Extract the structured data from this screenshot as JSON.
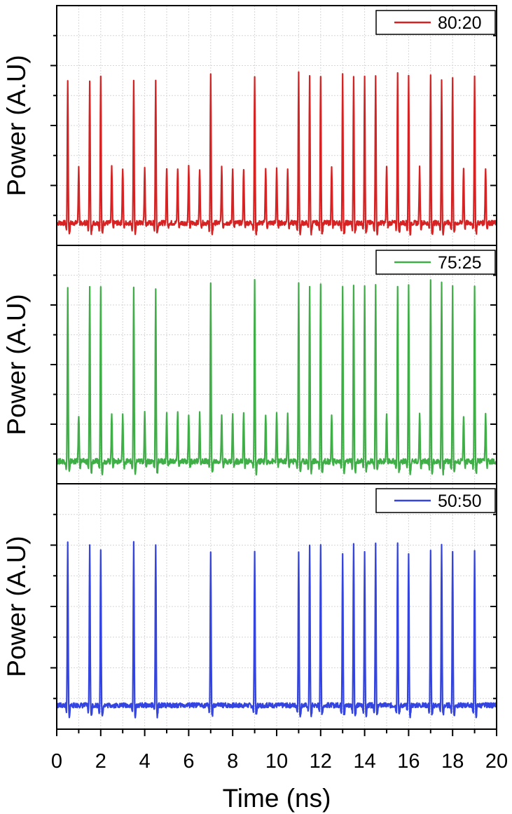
{
  "chart_data": [
    {
      "type": "line",
      "series": [
        {
          "name": "80:20",
          "color": "#d62222"
        }
      ],
      "legend": "top-right",
      "ylabel": "Power (A.U)",
      "baseline": 0.0,
      "pulses": {
        "x": [
          0.5,
          1.5,
          2.0,
          3.5,
          4.5,
          7.0,
          9.0,
          11.0,
          11.5,
          12.0,
          13.0,
          13.5,
          14.0,
          14.5,
          15.5,
          16.0,
          17.0,
          17.5,
          18.0,
          19.0
        ],
        "y": [
          0.86,
          0.86,
          0.88,
          0.86,
          0.86,
          0.89,
          0.88,
          0.89,
          0.89,
          0.89,
          0.88,
          0.88,
          0.89,
          0.89,
          0.89,
          0.88,
          0.89,
          0.85,
          0.88,
          0.89
        ]
      },
      "small_pulse_height": 0.33,
      "grid": true
    },
    {
      "type": "line",
      "series": [
        {
          "name": "75:25",
          "color": "#3fae47"
        }
      ],
      "legend": "top-right",
      "ylabel": "Power (A.U)",
      "baseline": 0.0,
      "pulses": {
        "x": [
          0.5,
          1.5,
          2.0,
          3.5,
          4.5,
          7.0,
          9.0,
          11.0,
          11.5,
          12.0,
          13.0,
          13.5,
          14.0,
          14.5,
          15.5,
          16.0,
          17.0,
          17.5,
          18.0,
          19.0
        ],
        "y": [
          0.96,
          0.96,
          0.96,
          0.96,
          0.96,
          1.0,
          0.99,
          0.98,
          0.96,
          0.99,
          0.98,
          0.96,
          0.96,
          0.98,
          0.96,
          0.98,
          1.0,
          0.99,
          0.96,
          0.97
        ]
      },
      "small_pulse_height": 0.26,
      "grid": true
    },
    {
      "type": "line",
      "series": [
        {
          "name": "50:50",
          "color": "#3344e0"
        }
      ],
      "legend": "top-right",
      "ylabel": "Power (A.U)",
      "xlabel": "Time (ns)",
      "xlim": [
        0,
        20
      ],
      "xticks": [
        "0",
        "2",
        "4",
        "6",
        "8",
        "10",
        "12",
        "14",
        "16",
        "18",
        "20"
      ],
      "baseline": 0.0,
      "pulses": {
        "x": [
          0.5,
          1.5,
          2.0,
          3.5,
          4.5,
          7.0,
          9.0,
          11.0,
          11.5,
          12.0,
          13.0,
          13.5,
          14.0,
          14.5,
          15.5,
          16.0,
          17.0,
          17.5,
          18.0,
          19.0
        ],
        "y": [
          0.97,
          0.97,
          0.92,
          0.97,
          0.97,
          0.92,
          0.92,
          0.92,
          0.97,
          0.97,
          0.92,
          0.97,
          0.92,
          0.97,
          0.97,
          0.92,
          0.92,
          0.97,
          0.92,
          0.92
        ]
      },
      "small_pulse_height": 0.0,
      "grid": true
    }
  ]
}
